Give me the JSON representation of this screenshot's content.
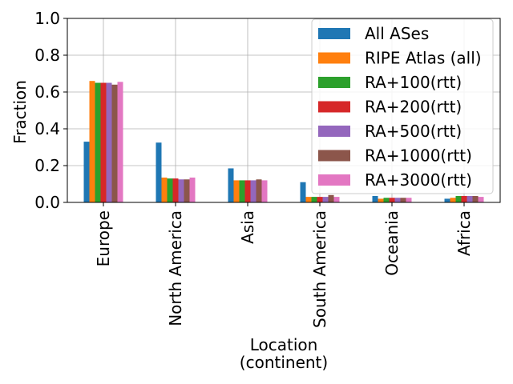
{
  "chart_data": {
    "type": "bar",
    "title": "",
    "xlabel": "Location\n(continent)",
    "ylabel": "Fraction",
    "ylim": [
      0,
      1.0
    ],
    "yticks": [
      "0.0",
      "0.2",
      "0.4",
      "0.6",
      "0.8",
      "1.0"
    ],
    "grid": true,
    "legend_position": "top-right",
    "categories": [
      "Europe",
      "North America",
      "Asia",
      "South America",
      "Oceania",
      "Africa"
    ],
    "series": [
      {
        "name": "All ASes",
        "color": "#1f77b4",
        "values": [
          0.33,
          0.325,
          0.185,
          0.11,
          0.035,
          0.02
        ]
      },
      {
        "name": "RIPE Atlas (all)",
        "color": "#ff7f0e",
        "values": [
          0.66,
          0.135,
          0.12,
          0.03,
          0.02,
          0.025
        ]
      },
      {
        "name": "RA+100(rtt)",
        "color": "#2ca02c",
        "values": [
          0.65,
          0.13,
          0.12,
          0.03,
          0.025,
          0.035
        ]
      },
      {
        "name": "RA+200(rtt)",
        "color": "#d62728",
        "values": [
          0.65,
          0.13,
          0.12,
          0.03,
          0.025,
          0.035
        ]
      },
      {
        "name": "RA+500(rtt)",
        "color": "#9467bd",
        "values": [
          0.65,
          0.125,
          0.12,
          0.03,
          0.025,
          0.035
        ]
      },
      {
        "name": "RA+1000(rtt)",
        "color": "#8c564b",
        "values": [
          0.64,
          0.125,
          0.125,
          0.04,
          0.025,
          0.035
        ]
      },
      {
        "name": "RA+3000(rtt)",
        "color": "#e377c2",
        "values": [
          0.655,
          0.135,
          0.12,
          0.03,
          0.025,
          0.03
        ]
      }
    ]
  }
}
